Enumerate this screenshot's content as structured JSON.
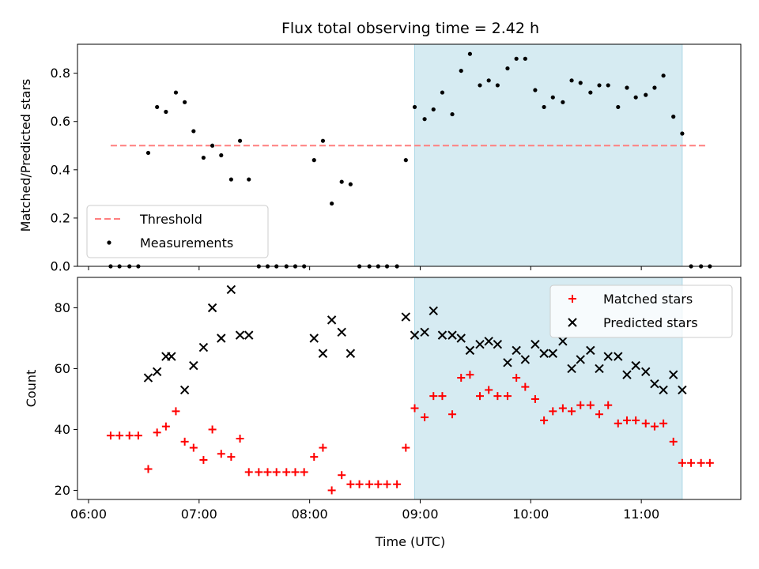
{
  "chart_data": {
    "title": "Flux total observing time = 2.42 h",
    "xlabel": "Time (UTC)",
    "x_unit": "hours UTC",
    "xlim": [
      5.9,
      11.9
    ],
    "xticks": [
      6,
      7,
      8,
      9,
      10,
      11
    ],
    "xtick_labels": [
      "06:00",
      "07:00",
      "08:00",
      "09:00",
      "10:00",
      "11:00"
    ],
    "shaded_region": {
      "x0": 8.95,
      "x1": 11.37,
      "color": "#add8e6"
    },
    "panels": [
      {
        "type": "scatter",
        "ylabel": "Matched/Predicted stars",
        "ylim": [
          0,
          0.92
        ],
        "yticks": [
          0.0,
          0.2,
          0.4,
          0.6,
          0.8
        ],
        "ytick_labels": [
          "0.0",
          "0.2",
          "0.4",
          "0.6",
          "0.8"
        ],
        "legend_position": "lower-left",
        "threshold": {
          "name": "Threshold",
          "value": 0.5,
          "x_range": [
            6.2,
            11.6
          ],
          "color": "#ff7f7f"
        },
        "series": [
          {
            "name": "Measurements",
            "color": "#000000",
            "marker": "dot",
            "x": [
              6.2,
              6.28,
              6.37,
              6.45,
              6.54,
              6.62,
              6.7,
              6.79,
              6.87,
              6.95,
              7.04,
              7.12,
              7.2,
              7.29,
              7.37,
              7.45,
              7.54,
              7.62,
              7.7,
              7.79,
              7.87,
              7.95,
              8.04,
              8.12,
              8.2,
              8.29,
              8.37,
              8.45,
              8.54,
              8.62,
              8.7,
              8.79,
              8.87,
              8.95,
              9.04,
              9.12,
              9.2,
              9.29,
              9.37,
              9.45,
              9.54,
              9.62,
              9.7,
              9.79,
              9.87,
              9.95,
              10.04,
              10.12,
              10.2,
              10.29,
              10.37,
              10.45,
              10.54,
              10.62,
              10.7,
              10.79,
              10.87,
              10.95,
              11.04,
              11.12,
              11.2,
              11.29,
              11.37,
              11.45,
              11.54,
              11.62
            ],
            "y": [
              0.0,
              0.0,
              0.0,
              0.0,
              0.47,
              0.66,
              0.64,
              0.72,
              0.68,
              0.56,
              0.45,
              0.5,
              0.46,
              0.36,
              0.52,
              0.36,
              0.0,
              0.0,
              0.0,
              0.0,
              0.0,
              0.0,
              0.44,
              0.52,
              0.26,
              0.35,
              0.34,
              0.0,
              0.0,
              0.0,
              0.0,
              0.0,
              0.44,
              0.66,
              0.61,
              0.65,
              0.72,
              0.63,
              0.81,
              0.88,
              0.75,
              0.77,
              0.75,
              0.82,
              0.86,
              0.86,
              0.73,
              0.66,
              0.7,
              0.68,
              0.77,
              0.76,
              0.72,
              0.75,
              0.75,
              0.66,
              0.74,
              0.7,
              0.71,
              0.74,
              0.79,
              0.62,
              0.55,
              0.0,
              0.0,
              0.0
            ]
          }
        ]
      },
      {
        "type": "scatter",
        "ylabel": "Count",
        "ylim": [
          17,
          90
        ],
        "yticks": [
          20,
          40,
          60,
          80
        ],
        "ytick_labels": [
          "20",
          "40",
          "60",
          "80"
        ],
        "legend_position": "upper-right",
        "series": [
          {
            "name": "Matched stars",
            "color": "#ff0000",
            "marker": "plus",
            "x": [
              6.2,
              6.28,
              6.37,
              6.45,
              6.54,
              6.62,
              6.7,
              6.79,
              6.87,
              6.95,
              7.04,
              7.12,
              7.2,
              7.29,
              7.37,
              7.45,
              7.54,
              7.62,
              7.7,
              7.79,
              7.87,
              7.95,
              8.04,
              8.12,
              8.2,
              8.29,
              8.37,
              8.45,
              8.54,
              8.62,
              8.7,
              8.79,
              8.87,
              8.95,
              9.04,
              9.12,
              9.2,
              9.29,
              9.37,
              9.45,
              9.54,
              9.62,
              9.7,
              9.79,
              9.87,
              9.95,
              10.04,
              10.12,
              10.2,
              10.29,
              10.37,
              10.45,
              10.54,
              10.62,
              10.7,
              10.79,
              10.87,
              10.95,
              11.04,
              11.12,
              11.2,
              11.29,
              11.37,
              11.45,
              11.54,
              11.62
            ],
            "y": [
              38,
              38,
              38,
              38,
              27,
              39,
              41,
              46,
              36,
              34,
              30,
              40,
              32,
              31,
              37,
              26,
              26,
              26,
              26,
              26,
              26,
              26,
              31,
              34,
              20,
              25,
              22,
              22,
              22,
              22,
              22,
              22,
              34,
              47,
              44,
              51,
              51,
              45,
              57,
              58,
              51,
              53,
              51,
              51,
              57,
              54,
              50,
              43,
              46,
              47,
              46,
              48,
              48,
              45,
              48,
              42,
              43,
              43,
              42,
              41,
              42,
              36,
              29,
              29,
              29,
              29
            ]
          },
          {
            "name": "Predicted stars",
            "color": "#000000",
            "marker": "x",
            "x": [
              6.54,
              6.62,
              6.7,
              6.75,
              6.87,
              6.95,
              7.04,
              7.12,
              7.2,
              7.29,
              7.37,
              7.45,
              8.04,
              8.12,
              8.2,
              8.29,
              8.37,
              8.87,
              8.95,
              9.04,
              9.12,
              9.2,
              9.29,
              9.37,
              9.45,
              9.54,
              9.62,
              9.7,
              9.79,
              9.87,
              9.95,
              10.04,
              10.12,
              10.2,
              10.29,
              10.37,
              10.45,
              10.54,
              10.62,
              10.7,
              10.79,
              10.87,
              10.95,
              11.04,
              11.12,
              11.2,
              11.29,
              11.37
            ],
            "y": [
              57,
              59,
              64,
              64,
              53,
              61,
              67,
              80,
              70,
              86,
              71,
              71,
              70,
              65,
              76,
              72,
              65,
              77,
              71,
              72,
              79,
              71,
              71,
              70,
              66,
              68,
              69,
              68,
              62,
              66,
              63,
              68,
              65,
              65,
              69,
              60,
              63,
              66,
              60,
              64,
              64,
              58,
              61,
              59,
              55,
              53,
              58,
              53
            ]
          }
        ]
      }
    ]
  }
}
